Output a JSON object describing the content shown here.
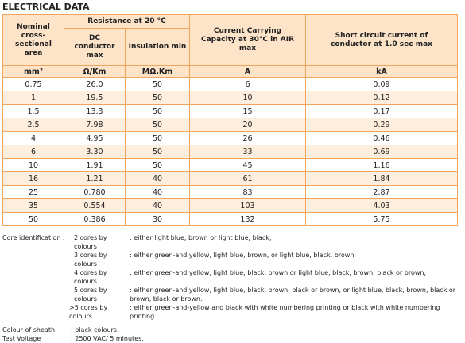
{
  "title": "ELECTRICAL DATA",
  "table": {
    "header": {
      "area": "Nominal cross-sectional area",
      "resistance": "Resistance at 20 °C",
      "dc": "DC conductor max",
      "insulation": "Insulation min",
      "current": "Current Carrying Capacity at 30°C in AIR max",
      "short": "Short circuit current of conductor at 1.0 sec max"
    },
    "units": [
      "mm²",
      "Ω/Km",
      "MΩ.Km",
      "A",
      "kA"
    ],
    "rows": [
      [
        "0.75",
        "26.0",
        "50",
        "6",
        "0.09"
      ],
      [
        "1",
        "19.5",
        "50",
        "10",
        "0.12"
      ],
      [
        "1.5",
        "13.3",
        "50",
        "15",
        "0.17"
      ],
      [
        "2.5",
        "7.98",
        "50",
        "20",
        "0.29"
      ],
      [
        "4",
        "4.95",
        "50",
        "26",
        "0.46"
      ],
      [
        "6",
        "3.30",
        "50",
        "33",
        "0.69"
      ],
      [
        "10",
        "1.91",
        "50",
        "45",
        "1.16"
      ],
      [
        "16",
        "1.21",
        "40",
        "61",
        "1.84"
      ],
      [
        "25",
        "0.780",
        "40",
        "83",
        "2.87"
      ],
      [
        "35",
        "0.554",
        "40",
        "103",
        "4.03"
      ],
      [
        "50",
        "0.386",
        "30",
        "132",
        "5.75"
      ]
    ]
  },
  "notes": {
    "core_label": "Core identification :",
    "core_items": [
      {
        "label": "2 cores by colours",
        "text": ": either light blue, brown or light blue, black;"
      },
      {
        "label": "3 cores by colours",
        "text": ": either green-and yellow, light blue, brown, or light blue, black, brown;"
      },
      {
        "label": "4 cores by colours",
        "text": ": either green-and yellow, light blue, black, brown or light blue, black, brown, black or brown;"
      },
      {
        "label": "5 cores by colours",
        "text": ": either green-and yellow, light blue, black, brown, black or brown, or light blue, black, brown, black or brown, black or brown."
      },
      {
        "label": ">5 cores by colours",
        "text": ": either green-and-yellow and black with white numbering printing or black with white numbering printing."
      }
    ],
    "sheath": {
      "label": "Colour of sheath",
      "text": ": black colours."
    },
    "voltage": {
      "label": "Test Voltage",
      "text": ": 2500 VAC/ 5 minutes."
    }
  }
}
